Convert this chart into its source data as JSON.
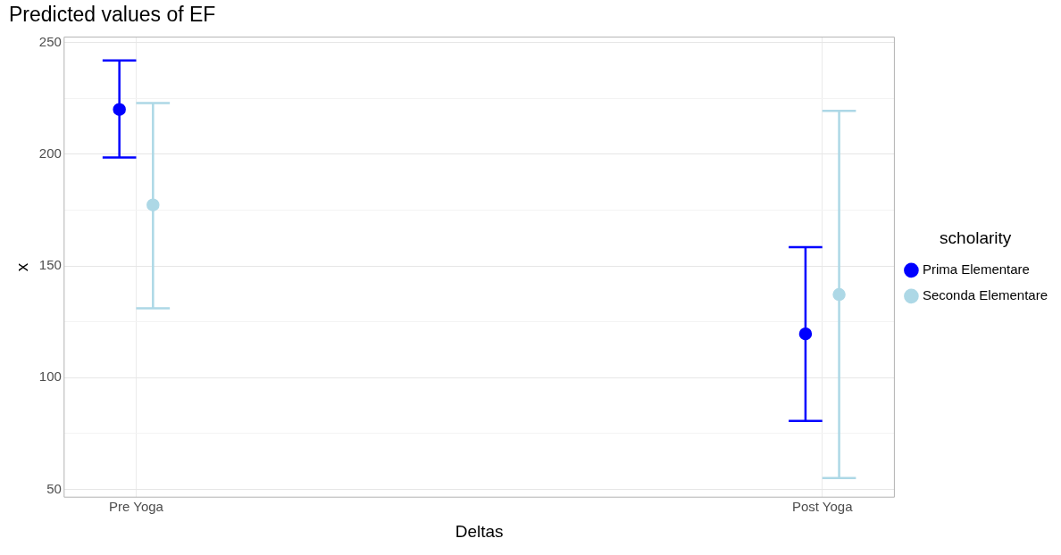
{
  "chart_data": {
    "type": "scatter",
    "title": "Predicted values of EF",
    "xlabel": "Deltas",
    "ylabel": "x",
    "legend_title": "scholarity",
    "categories": [
      "Pre Yoga",
      "Post Yoga"
    ],
    "series": [
      {
        "name": "Prima Elementare",
        "color": "#0000ff",
        "values": [
          220,
          119.6
        ],
        "errors": [
          [
            198.5,
            242
          ],
          [
            80.6,
            158.4
          ]
        ]
      },
      {
        "name": "Seconda Elementare",
        "color": "#add8e6",
        "values": [
          177.3,
          137.2
        ],
        "errors": [
          [
            131,
            222.9
          ],
          [
            55.1,
            219.4
          ]
        ]
      }
    ],
    "ylim": [
      46.5,
      252.4
    ],
    "yticks": [
      50,
      {
        "value": 75,
        "label": null
      },
      100,
      {
        "value": 125,
        "label": null
      },
      150,
      {
        "value": 175,
        "label": null
      },
      200,
      {
        "value": 225,
        "label": null
      },
      250
    ],
    "grid": true,
    "legend": "right",
    "marker": "circle"
  }
}
